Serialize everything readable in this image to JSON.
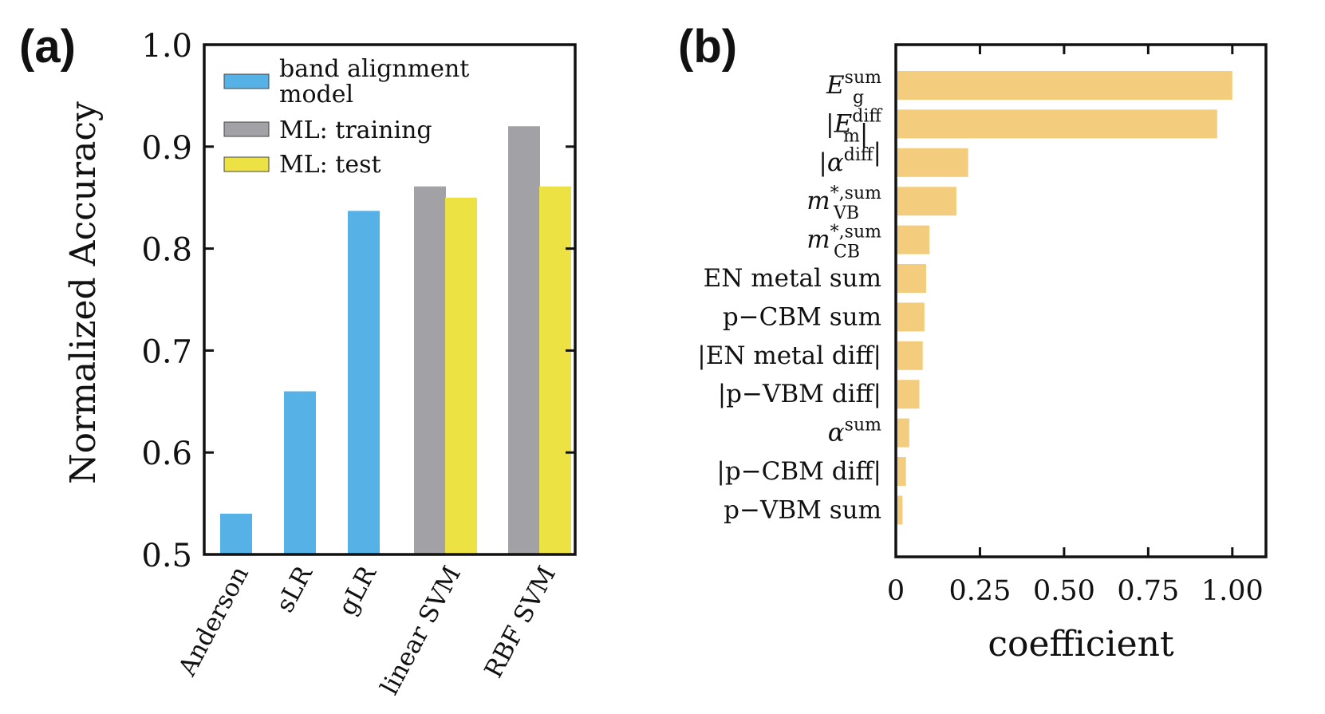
{
  "chart_data": [
    {
      "panel": "(a)",
      "type": "bar",
      "ylabel": "Normalized Accuracy",
      "xlabel": "",
      "ylim": [
        0.5,
        1.0
      ],
      "yticks": [
        "0.5",
        "0.6",
        "0.7",
        "0.8",
        "0.9",
        "1.0"
      ],
      "categories": [
        "Anderson",
        "sLR",
        "gLR",
        "linear SVM",
        "RBF SVM"
      ],
      "series": [
        {
          "name_lines": [
            "band alignment",
            "model"
          ],
          "color": "#56b2e6",
          "values": [
            0.54,
            0.66,
            0.837,
            null,
            null
          ]
        },
        {
          "name_lines": [
            "ML: training"
          ],
          "color": "#a2a1a6",
          "values": [
            null,
            null,
            null,
            0.861,
            0.92
          ]
        },
        {
          "name_lines": [
            "ML: test"
          ],
          "color": "#ede243",
          "values": [
            null,
            null,
            null,
            0.85,
            0.861
          ]
        }
      ],
      "legend_position": "top-left"
    },
    {
      "panel": "(b)",
      "type": "bar",
      "orientation": "horizontal",
      "xlabel": "coefficient",
      "ylabel": "",
      "xlim": [
        0,
        1.1
      ],
      "xticks": [
        "0",
        "0.25",
        "0.50",
        "0.75",
        "1.00"
      ],
      "color": "#f3cd7d",
      "features": [
        {
          "main": "E",
          "sub": "g",
          "sup": "sum",
          "value": 1.0
        },
        {
          "main": "|E",
          "sub": "m",
          "sup": "diff",
          "post": "|",
          "value": 0.955
        },
        {
          "main": "|α",
          "sub": "",
          "sup": "diff",
          "post": "|",
          "value": 0.215
        },
        {
          "main": "m",
          "sub": "VB",
          "sup": "*,sum",
          "value": 0.18
        },
        {
          "main": "m",
          "sub": "CB",
          "sup": "*,sum",
          "value": 0.1
        },
        {
          "text": "EN metal sum",
          "value": 0.09
        },
        {
          "text": "p−CBM sum",
          "value": 0.085
        },
        {
          "text": "|EN metal diff|",
          "value": 0.08
        },
        {
          "text": "|p−VBM diff|",
          "value": 0.07
        },
        {
          "main": "α",
          "sub": "",
          "sup": "sum",
          "value": 0.04
        },
        {
          "text": "|p−CBM diff|",
          "value": 0.03
        },
        {
          "text": "p−VBM sum",
          "value": 0.02
        }
      ]
    }
  ]
}
